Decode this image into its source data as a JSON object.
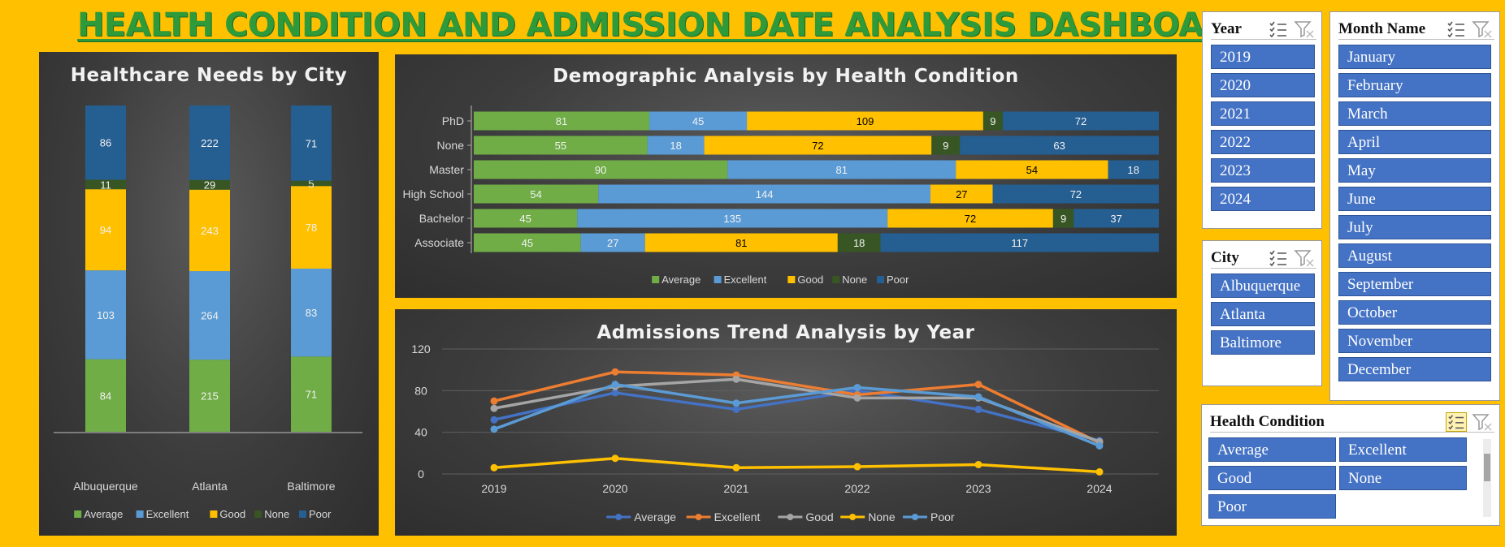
{
  "dashboard_title": "HEALTH CONDITION AND ADMISSION DATE ANALYSIS DASHBOARD",
  "colors": {
    "Average": "#70AD47",
    "Excellent": "#5B9BD5",
    "Good": "#FFC000",
    "None": "#375623",
    "Poor": "#255E91",
    "line_Average": "#4472C4",
    "line_Excellent": "#ED7D31",
    "line_Good": "#A5A5A5",
    "line_None": "#FFC000",
    "line_Poor": "#5B9BD5",
    "slicer_item": "#4472C4",
    "background": "#FFC000"
  },
  "chart_data": [
    {
      "type": "bar",
      "orientation": "vertical",
      "stacked": true,
      "title": "Healthcare Needs by City",
      "categories": [
        "Albuquerque",
        "Atlanta",
        "Baltimore"
      ],
      "series": [
        {
          "name": "Average",
          "values": [
            84,
            215,
            71
          ]
        },
        {
          "name": "Excellent",
          "values": [
            103,
            264,
            83
          ]
        },
        {
          "name": "Good",
          "values": [
            94,
            243,
            78
          ]
        },
        {
          "name": "None",
          "values": [
            11,
            29,
            5
          ]
        },
        {
          "name": "Poor",
          "values": [
            86,
            222,
            71
          ]
        }
      ],
      "legend": "bottom",
      "scale": "100% stacked"
    },
    {
      "type": "bar",
      "orientation": "horizontal",
      "stacked": true,
      "title": "Demographic Analysis by Health Condition",
      "categories": [
        "PhD",
        "None",
        "Master",
        "High School",
        "Bachelor",
        "Associate"
      ],
      "series": [
        {
          "name": "Average",
          "values": [
            81,
            55,
            90,
            54,
            45,
            45
          ]
        },
        {
          "name": "Excellent",
          "values": [
            45,
            18,
            81,
            144,
            135,
            27
          ]
        },
        {
          "name": "Good",
          "values": [
            109,
            72,
            54,
            27,
            72,
            81
          ]
        },
        {
          "name": "None",
          "values": [
            9,
            9,
            0,
            0,
            9,
            18
          ]
        },
        {
          "name": "Poor",
          "values": [
            72,
            63,
            18,
            72,
            37,
            117
          ]
        }
      ],
      "legend": "bottom",
      "scale": "100% stacked"
    },
    {
      "type": "line",
      "title": "Admissions Trend Analysis by Year",
      "x": [
        "2019",
        "2020",
        "2021",
        "2022",
        "2023",
        "2024"
      ],
      "series": [
        {
          "name": "Average",
          "values": [
            52,
            78,
            62,
            80,
            62,
            32
          ]
        },
        {
          "name": "Excellent",
          "values": [
            70,
            98,
            95,
            76,
            86,
            30
          ]
        },
        {
          "name": "Good",
          "values": [
            63,
            84,
            91,
            73,
            73,
            31
          ]
        },
        {
          "name": "None",
          "values": [
            6,
            15,
            6,
            7,
            9,
            2
          ]
        },
        {
          "name": "Poor",
          "values": [
            43,
            86,
            68,
            83,
            74,
            27
          ]
        }
      ],
      "yticks": [
        "0",
        "40",
        "80",
        "120"
      ],
      "ylim": [
        0,
        120
      ],
      "legend": "bottom",
      "grid": true
    }
  ],
  "slicers": {
    "year": {
      "title": "Year",
      "items": [
        "2019",
        "2020",
        "2021",
        "2022",
        "2023",
        "2024"
      ]
    },
    "month": {
      "title": "Month Name",
      "items": [
        "January",
        "February",
        "March",
        "April",
        "May",
        "June",
        "July",
        "August",
        "September",
        "October",
        "November",
        "December"
      ]
    },
    "city": {
      "title": "City",
      "items": [
        "Albuquerque",
        "Atlanta",
        "Baltimore"
      ]
    },
    "health": {
      "title": "Health Condition",
      "items": [
        "Average",
        "Excellent",
        "Good",
        "None",
        "Poor"
      ]
    }
  }
}
